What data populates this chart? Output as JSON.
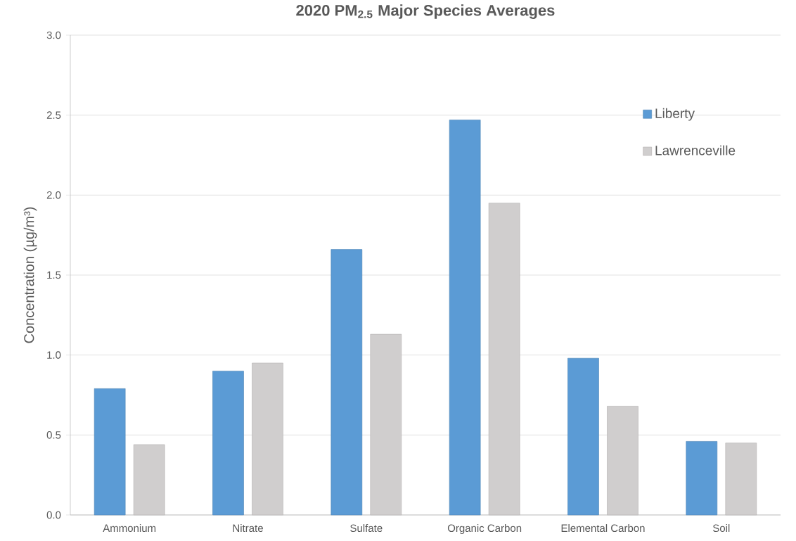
{
  "chart_data": {
    "type": "bar",
    "title": "2020 PM$_{2.5}$ Major Species Averages",
    "ylabel": "Concentration (µg/m³)",
    "categories": [
      "Ammonium",
      "Nitrate",
      "Sulfate",
      "Organic Carbon",
      "Elemental Carbon",
      "Soil"
    ],
    "series": [
      {
        "name": "Liberty",
        "color": "#5b9bd5",
        "values": [
          0.79,
          0.9,
          1.66,
          2.47,
          0.98,
          0.46
        ]
      },
      {
        "name": "Lawrenceville",
        "color": "#d0cece",
        "values": [
          0.44,
          0.95,
          1.13,
          1.95,
          0.68,
          0.45
        ]
      }
    ],
    "ylim": [
      0,
      3
    ],
    "yticks": [
      {
        "value": 0,
        "label": "0.0"
      },
      0.5,
      {
        "value": 1,
        "label": "1.0"
      },
      1.5,
      {
        "value": 2,
        "label": "2.0"
      },
      2.5,
      {
        "value": 3,
        "label": "3.0"
      }
    ],
    "grid": "y",
    "legend": "right"
  }
}
